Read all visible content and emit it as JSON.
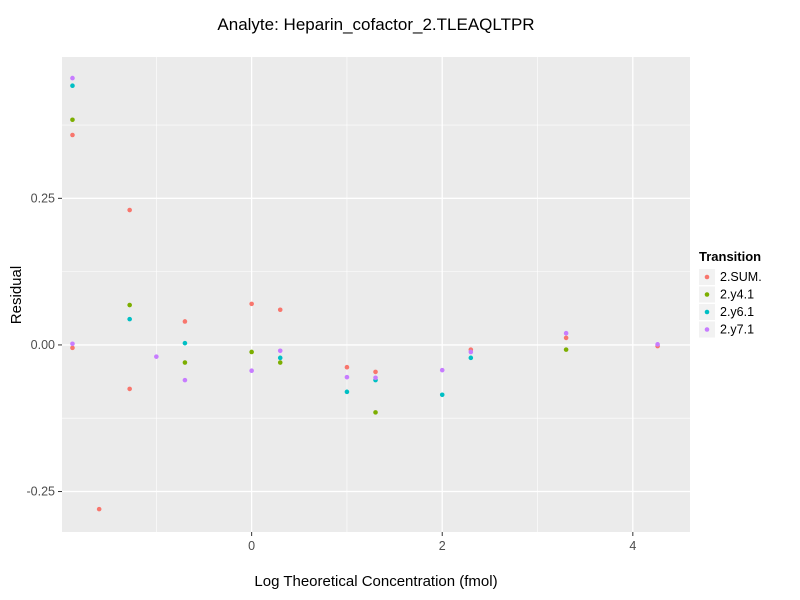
{
  "chart_data": {
    "type": "scatter",
    "title": "Analyte: Heparin_cofactor_2.TLEAQLTPR",
    "xlabel": "Log Theoretical Concentration (fmol)",
    "ylabel": "Residual",
    "xlim": [
      -1.99,
      4.6
    ],
    "ylim": [
      -0.319,
      0.491
    ],
    "xticks": {
      "major": [
        0,
        2,
        4
      ],
      "labels": [
        "0",
        "2",
        "4"
      ],
      "minor": [
        -1,
        1,
        3
      ]
    },
    "yticks": {
      "major": [
        -0.25,
        0,
        0.25
      ],
      "labels": [
        "-0.25",
        "0.00",
        "0.25"
      ],
      "minor": [
        -0.125,
        0.125,
        0.375
      ]
    },
    "grid": "on",
    "panel_background": "#EBEBEB",
    "grid_color": "#FFFFFF",
    "tick_color": "#333333",
    "legend": {
      "title": "Transition",
      "position": "right",
      "key_background": "#F2F2F2"
    },
    "series": [
      {
        "name": "2.SUM.",
        "color": "#F8766D",
        "points": [
          [
            -1.88,
            0.358
          ],
          [
            -1.88,
            -0.005
          ],
          [
            -1.6,
            -0.28
          ],
          [
            -1.28,
            0.23
          ],
          [
            -1.28,
            -0.075
          ],
          [
            -0.7,
            0.04
          ],
          [
            0,
            0.07
          ],
          [
            0.3,
            0.06
          ],
          [
            1,
            -0.038
          ],
          [
            1.3,
            -0.046
          ],
          [
            2.3,
            -0.008
          ],
          [
            3.3,
            0.012
          ],
          [
            4.26,
            -0.002
          ]
        ]
      },
      {
        "name": "2.y4.1",
        "color": "#7CAE00",
        "points": [
          [
            -1.88,
            0.384
          ],
          [
            -1.28,
            0.068
          ],
          [
            -0.7,
            -0.03
          ],
          [
            0,
            -0.012
          ],
          [
            0.3,
            -0.03
          ],
          [
            1.3,
            -0.115
          ],
          [
            3.3,
            -0.008
          ]
        ]
      },
      {
        "name": "2.y6.1",
        "color": "#00BFC4",
        "points": [
          [
            -1.88,
            0.442
          ],
          [
            -1.28,
            0.044
          ],
          [
            -0.7,
            0.003
          ],
          [
            0.3,
            -0.022
          ],
          [
            1,
            -0.08
          ],
          [
            1.3,
            -0.06
          ],
          [
            2,
            -0.085
          ],
          [
            2.3,
            -0.022
          ]
        ]
      },
      {
        "name": "2.y7.1",
        "color": "#C77CFF",
        "points": [
          [
            -1.88,
            0.455
          ],
          [
            -1.88,
            0.002
          ],
          [
            -1.0,
            -0.02
          ],
          [
            -0.7,
            -0.06
          ],
          [
            0,
            -0.044
          ],
          [
            0.3,
            -0.01
          ],
          [
            1,
            -0.055
          ],
          [
            1.3,
            -0.056
          ],
          [
            2,
            -0.043
          ],
          [
            2.3,
            -0.012
          ],
          [
            3.3,
            0.02
          ],
          [
            4.26,
            0.001
          ]
        ]
      }
    ]
  }
}
